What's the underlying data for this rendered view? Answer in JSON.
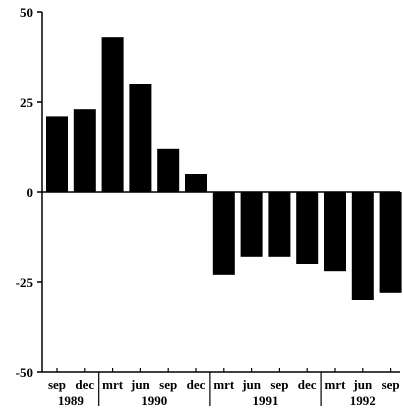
{
  "chart_data": {
    "type": "bar",
    "categories": [
      "sep",
      "dec",
      "mrt",
      "jun",
      "sep",
      "dec",
      "mrt",
      "jun",
      "sep",
      "dec",
      "mrt",
      "jun",
      "sep"
    ],
    "years": [
      {
        "label": "1989",
        "categories": [
          "sep",
          "dec"
        ]
      },
      {
        "label": "1990",
        "categories": [
          "mrt",
          "jun",
          "sep",
          "dec"
        ]
      },
      {
        "label": "1991",
        "categories": [
          "mrt",
          "jun",
          "sep",
          "dec"
        ]
      },
      {
        "label": "1992",
        "categories": [
          "mrt",
          "jun",
          "sep"
        ]
      }
    ],
    "values": [
      21,
      23,
      43,
      30,
      12,
      5,
      -23,
      -18,
      -18,
      -20,
      -22,
      -30,
      -28
    ],
    "ylim": [
      -50,
      50
    ],
    "yticks": [
      50,
      25,
      0,
      -25,
      -50
    ],
    "ytick_labels": [
      "50",
      "25",
      "0",
      "-25",
      "-50"
    ],
    "title": "",
    "xlabel": "",
    "ylabel": "",
    "grid": false,
    "bar_color": "#000000"
  }
}
